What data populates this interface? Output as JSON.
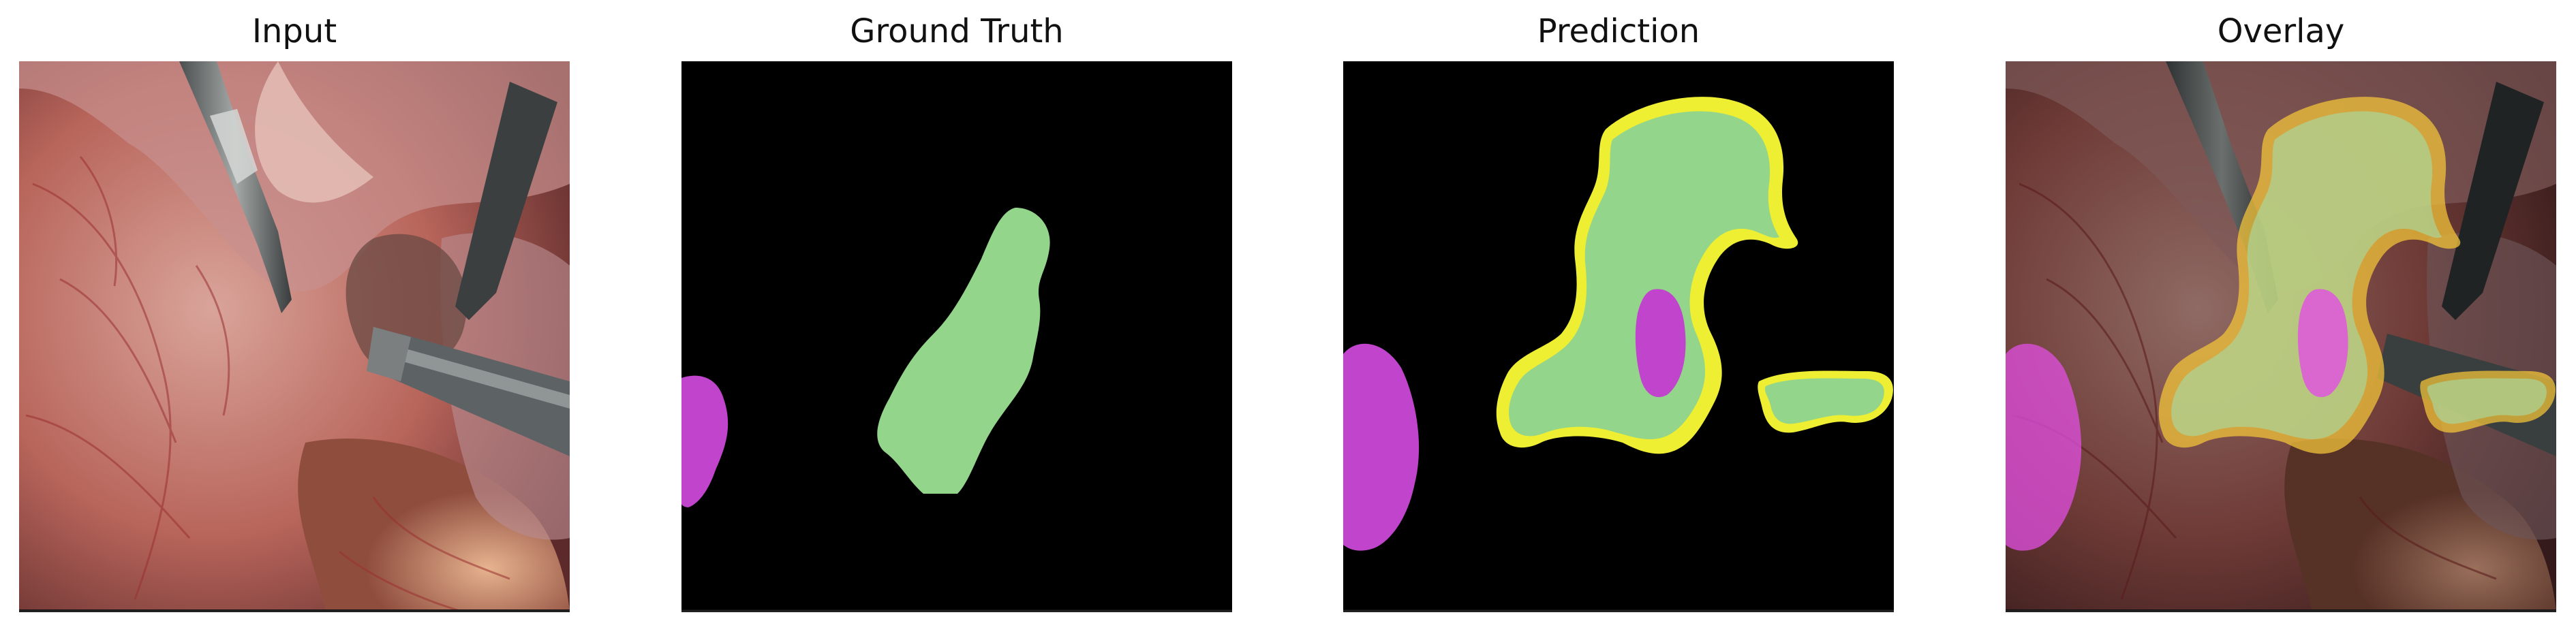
{
  "panels": [
    {
      "title": "Input"
    },
    {
      "title": "Ground Truth"
    },
    {
      "title": "Prediction"
    },
    {
      "title": "Overlay"
    }
  ],
  "colors": {
    "ground_truth_class_a": "#93d58a",
    "ground_truth_class_b": "#c044cc",
    "prediction_fill": "#93d58a",
    "prediction_boundary": "#eeee33",
    "background": "#000000"
  }
}
